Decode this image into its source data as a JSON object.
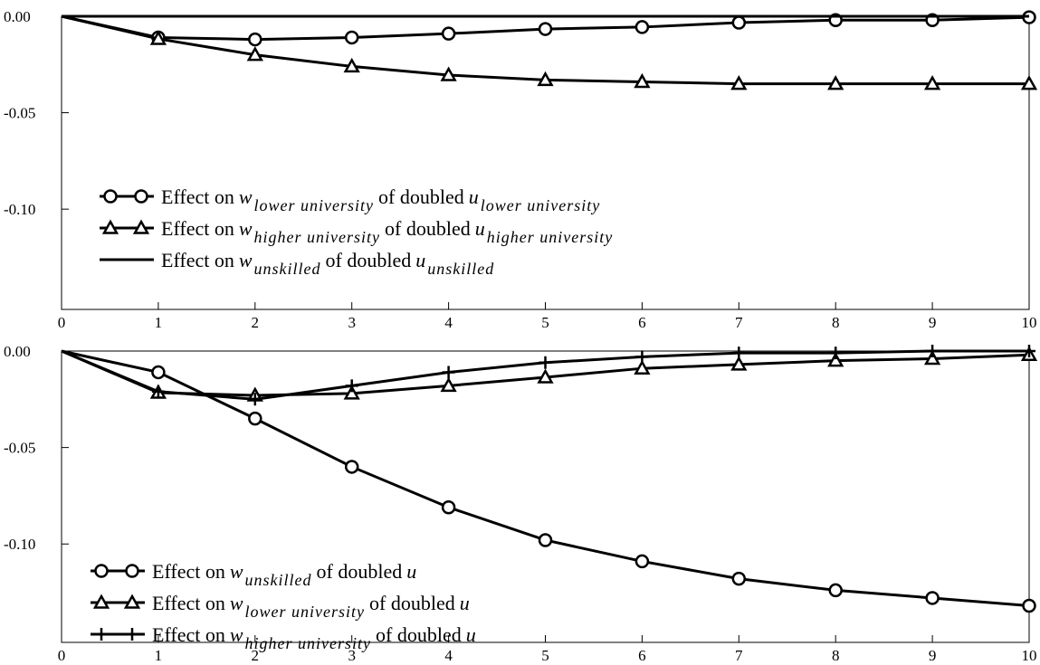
{
  "chart_data": [
    {
      "type": "line",
      "x": [
        0,
        1,
        2,
        3,
        4,
        5,
        6,
        7,
        8,
        9,
        10
      ],
      "xlim": [
        0,
        10
      ],
      "xticks": [
        0,
        1,
        2,
        3,
        4,
        5,
        6,
        7,
        8,
        9,
        10
      ],
      "ylim": [
        -0.152,
        0
      ],
      "yticks": [
        {
          "value": 0,
          "label": "0.00"
        },
        -0.05,
        {
          "value": -0.1,
          "label": "-0.10"
        }
      ],
      "legend": "lower left",
      "series": [
        {
          "name": [
            "Effect on",
            "w",
            "lower university",
            "of doubled",
            "u",
            "lower university"
          ],
          "color": "#000000",
          "marker": "circle",
          "values": [
            0,
            -0.011,
            -0.012,
            -0.011,
            -0.009,
            -0.0066,
            -0.0056,
            -0.0033,
            -0.002,
            -0.002,
            -0.0005
          ]
        },
        {
          "name": [
            "Effect on",
            "w",
            "higher university",
            "of doubled",
            "u",
            "higher university"
          ],
          "color": "#000000",
          "marker": "triangle",
          "values": [
            0,
            -0.0117,
            -0.02,
            -0.026,
            -0.0305,
            -0.033,
            -0.034,
            -0.035,
            -0.035,
            -0.035,
            -0.035
          ]
        },
        {
          "name": [
            "Effect on",
            "w",
            "unskilled",
            "of doubled",
            "u",
            "unskilled"
          ],
          "color": "#000000",
          "marker": "none",
          "values": [
            0,
            0,
            0,
            0,
            0,
            0,
            0,
            0,
            0,
            0,
            0
          ]
        }
      ]
    },
    {
      "type": "line",
      "x": [
        0,
        1,
        2,
        3,
        4,
        5,
        6,
        7,
        8,
        9,
        10
      ],
      "xlim": [
        0,
        10
      ],
      "xticks": [
        0,
        1,
        2,
        3,
        4,
        5,
        6,
        7,
        8,
        9,
        10
      ],
      "ylim": [
        -0.151,
        0
      ],
      "yticks": [
        {
          "value": 0,
          "label": "0.00"
        },
        -0.05,
        {
          "value": -0.1,
          "label": "-0.10"
        }
      ],
      "legend": "lower left",
      "series": [
        {
          "name": [
            "Effect on",
            "w",
            "unskilled",
            "of doubled",
            "u"
          ],
          "color": "#000000",
          "marker": "circle",
          "values": [
            0,
            -0.011,
            -0.035,
            -0.06,
            -0.081,
            -0.098,
            -0.109,
            -0.118,
            -0.124,
            -0.128,
            -0.132
          ]
        },
        {
          "name": [
            "Effect on",
            "w",
            "lower university",
            "of doubled",
            "u"
          ],
          "color": "#000000",
          "marker": "triangle",
          "values": [
            0,
            -0.0216,
            -0.023,
            -0.022,
            -0.018,
            -0.0136,
            -0.009,
            -0.007,
            -0.005,
            -0.004,
            -0.002
          ]
        },
        {
          "name": [
            "Effect on",
            "w",
            "higher university",
            "of doubled",
            "u"
          ],
          "color": "#000000",
          "marker": "plus",
          "values": [
            0,
            -0.021,
            -0.025,
            -0.018,
            -0.011,
            -0.006,
            -0.003,
            -0.001,
            -0.001,
            0,
            0
          ]
        }
      ]
    }
  ]
}
